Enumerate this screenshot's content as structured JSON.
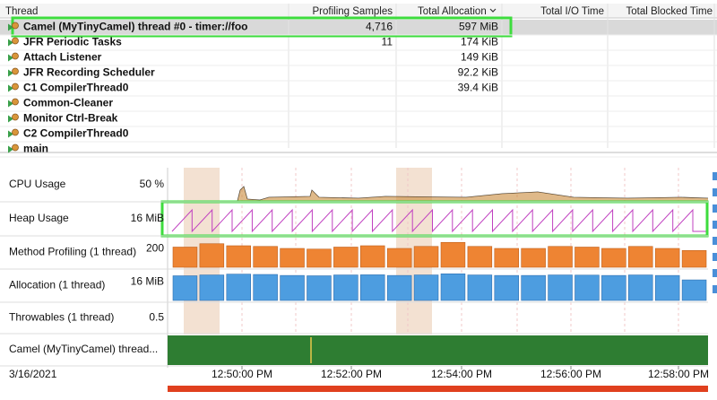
{
  "table": {
    "columns": [
      "Thread",
      "Profiling Samples",
      "Total Allocation",
      "Total I/O Time",
      "Total Blocked Time"
    ],
    "rows": [
      {
        "thread": "Camel (MyTinyCamel) thread #0 - timer://foo",
        "samples": "4,716",
        "allocation": "597 MiB"
      },
      {
        "thread": "JFR Periodic Tasks",
        "samples": "11",
        "allocation": "174 KiB"
      },
      {
        "thread": "Attach Listener",
        "allocation": "149 KiB"
      },
      {
        "thread": "JFR Recording Scheduler",
        "allocation": "92.2 KiB"
      },
      {
        "thread": "C1 CompilerThread0",
        "allocation": "39.4 KiB"
      },
      {
        "thread": "Common-Cleaner"
      },
      {
        "thread": "Monitor Ctrl-Break"
      },
      {
        "thread": "C2 CompilerThread0"
      },
      {
        "thread": "main"
      }
    ]
  },
  "timeline": {
    "lanes": [
      {
        "label": "CPU Usage",
        "scale": "50 %"
      },
      {
        "label": "Heap Usage",
        "scale": "16 MiB"
      },
      {
        "label": "Method Profiling (1 thread)",
        "ytick": 200,
        "ylim": [
          0,
          220
        ],
        "values": [
          150,
          175,
          160,
          155,
          140,
          135,
          150,
          160,
          140,
          155,
          185,
          155,
          140,
          140,
          155,
          150,
          140,
          155,
          140,
          125
        ]
      },
      {
        "label": "Allocation (1 thread)",
        "ytick": {
          "value": 16,
          "label": "16 MiB"
        },
        "ylim": [
          0,
          18
        ],
        "values": [
          15,
          15.5,
          16,
          15.8,
          15.2,
          15,
          15.5,
          15.6,
          15.2,
          15.5,
          16.2,
          15.5,
          15.2,
          15.2,
          15.5,
          15.4,
          15.2,
          15.5,
          15.2,
          12.5
        ]
      },
      {
        "label": "Throwables (1 thread)",
        "scale": "0.5"
      },
      {
        "label": "Camel (MyTinyCamel) thread..."
      }
    ],
    "date": "3/16/2021",
    "times": [
      "12:50:00 PM",
      "12:52:00 PM",
      "12:54:00 PM",
      "12:56:00 PM",
      "12:58:00 PM"
    ]
  }
}
